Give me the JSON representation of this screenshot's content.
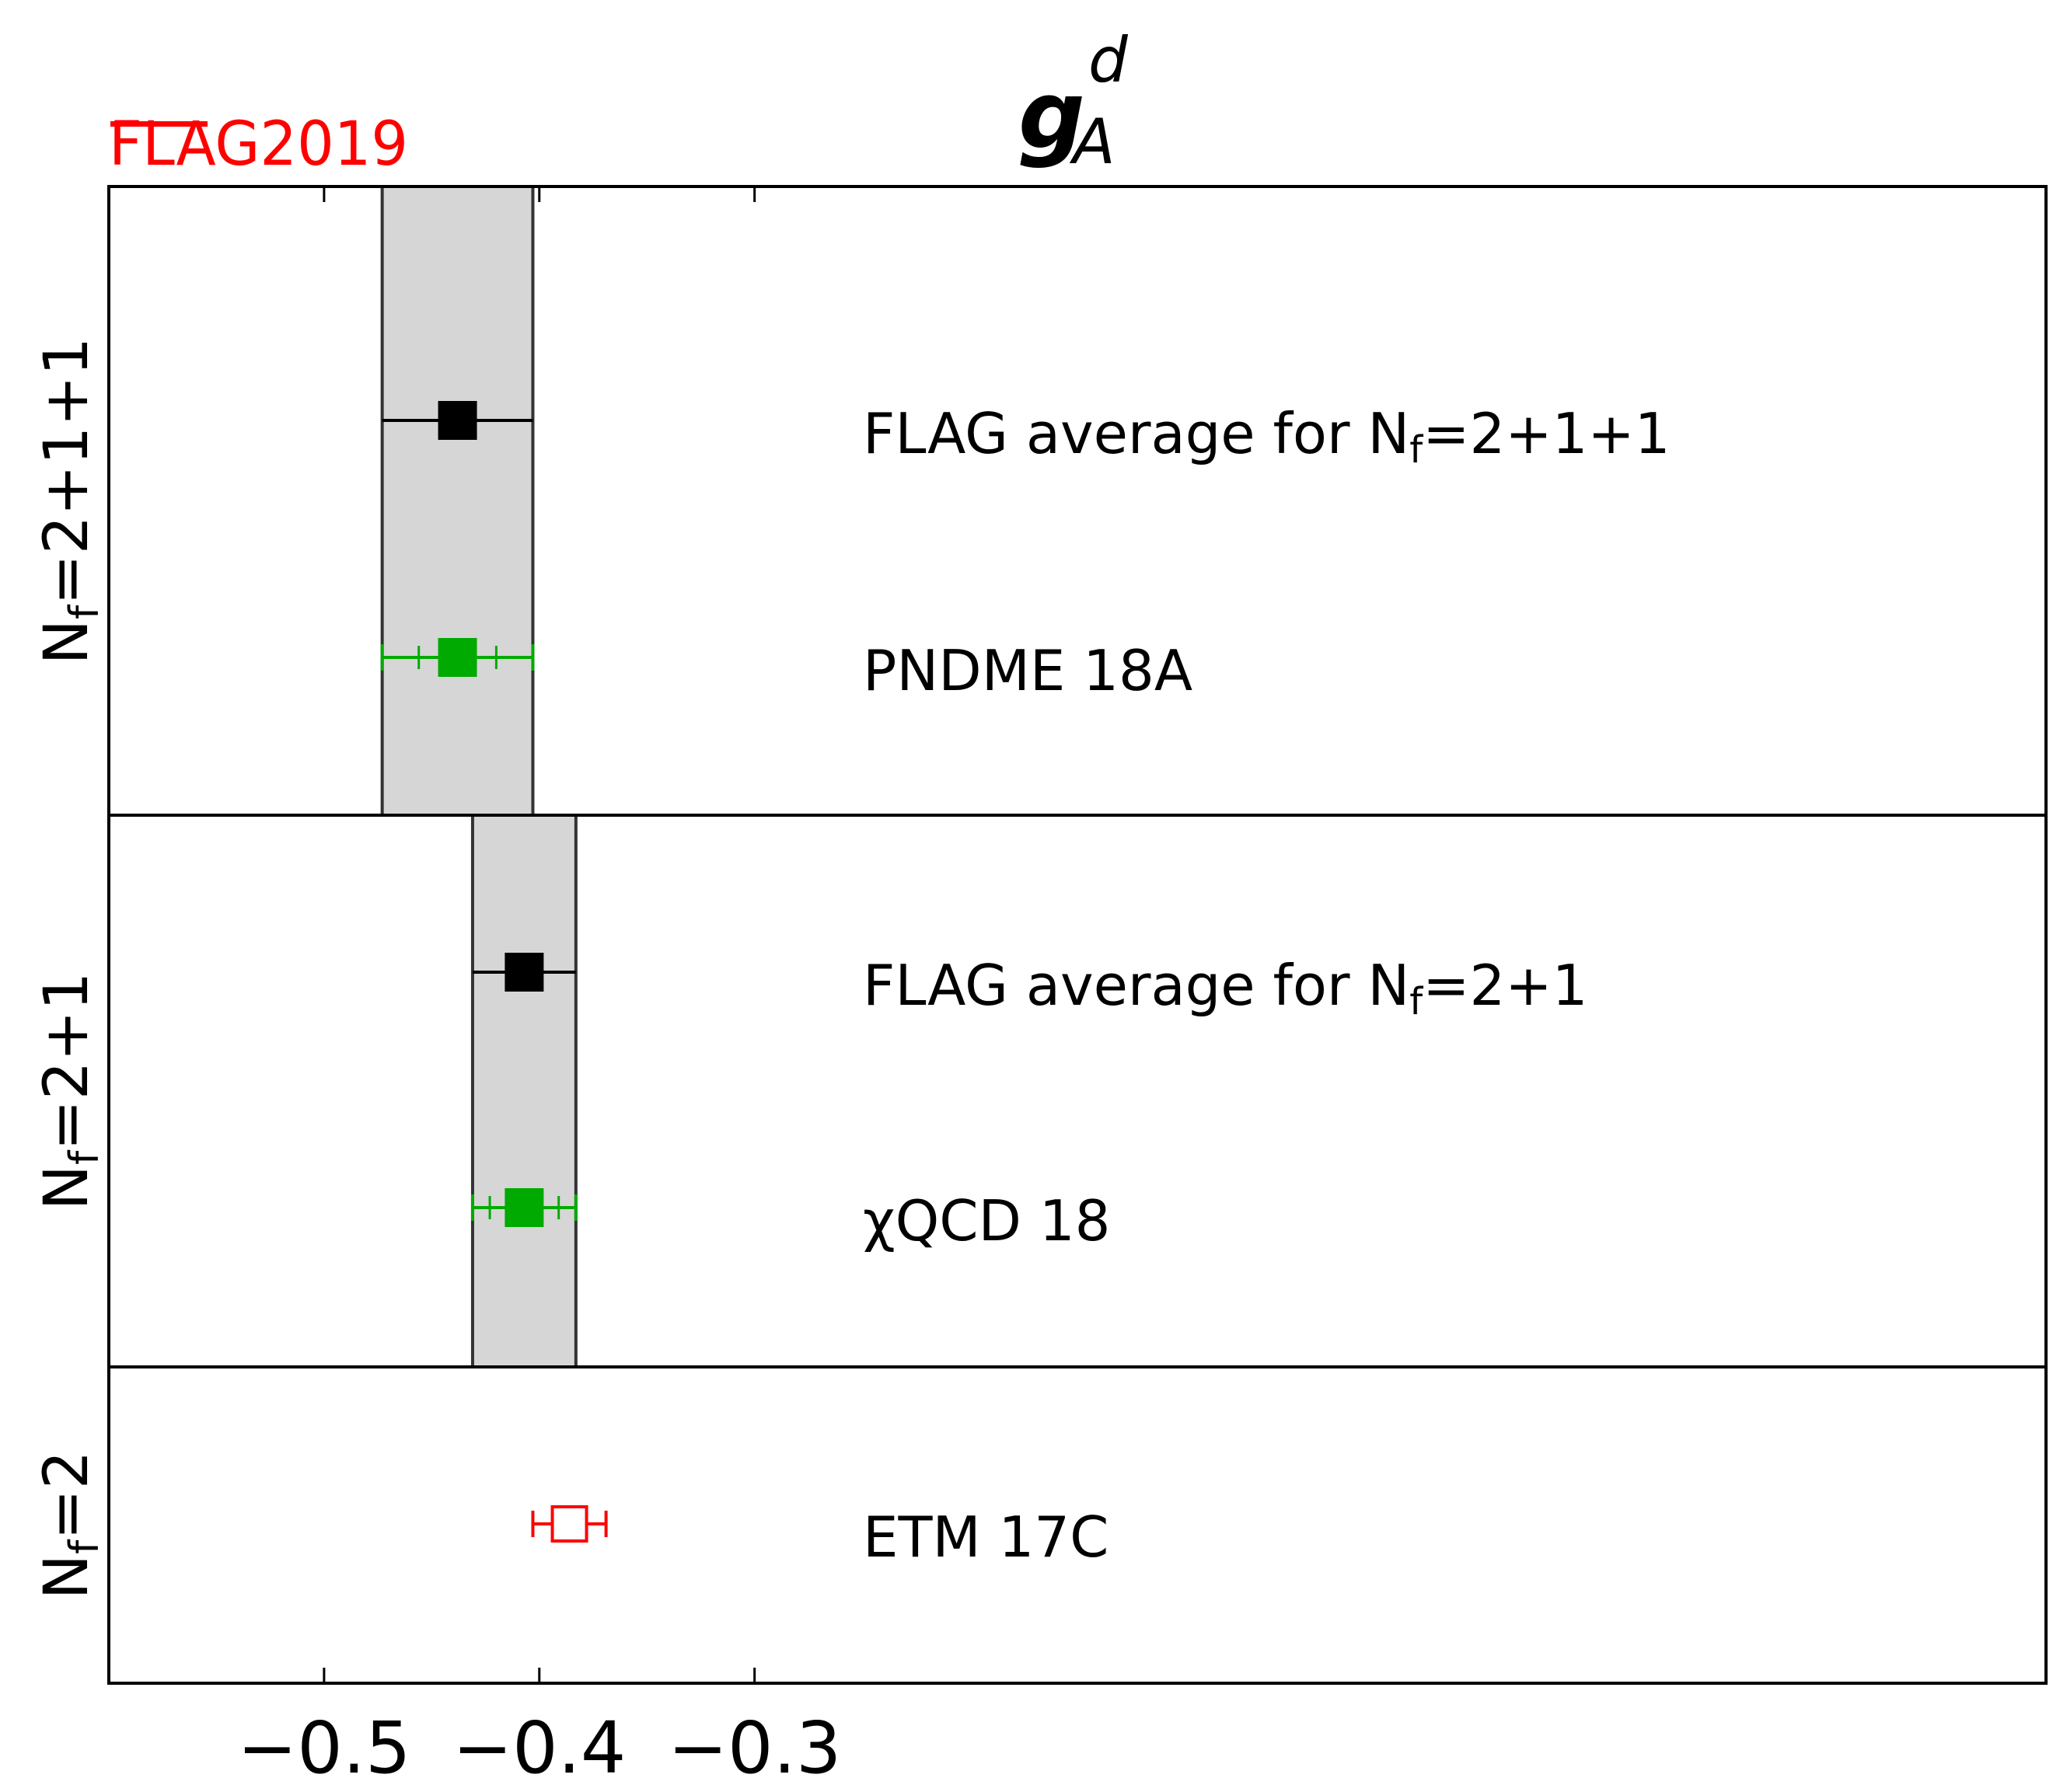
{
  "chart_data": {
    "type": "scatter",
    "title_main": "g",
    "title_sub": "A",
    "title_sup": "d",
    "watermark": "FLAG2019",
    "xlim": [
      -0.6,
      0.3
    ],
    "xticks": [
      -0.5,
      -0.4,
      -0.3
    ],
    "xtick_labels": [
      "−0.5",
      "−0.4",
      "−0.3"
    ],
    "grid": false,
    "colors": {
      "average": "#000000",
      "green": "#00aa00",
      "red": "#ff0000",
      "band": "#d6d6d6"
    },
    "panels": [
      {
        "label": "N",
        "label_sub": "f",
        "label_rest": "=2+1+1",
        "band": [
          -0.473,
          -0.403
        ],
        "points": [
          {
            "name": "FLAG average for N",
            "name_sub": "f",
            "name_rest": "=2+1+1",
            "value": -0.438,
            "err": 0.035,
            "stat_err": null,
            "color": "#000000",
            "filled": true
          },
          {
            "name": "PNDME 18A",
            "value": -0.438,
            "err": 0.035,
            "stat_err": 0.018,
            "color": "#00aa00",
            "filled": true
          }
        ]
      },
      {
        "label": "N",
        "label_sub": "f",
        "label_rest": "=2+1",
        "band": [
          -0.431,
          -0.383
        ],
        "points": [
          {
            "name": "FLAG average for N",
            "name_sub": "f",
            "name_rest": "=2+1",
            "value": -0.407,
            "err": 0.024,
            "stat_err": null,
            "color": "#000000",
            "filled": true
          },
          {
            "name": "χQCD 18",
            "value": -0.407,
            "err": 0.024,
            "stat_err": 0.016,
            "color": "#00aa00",
            "filled": true
          }
        ]
      },
      {
        "label": "N",
        "label_sub": "f",
        "label_rest": "=2",
        "band": null,
        "points": [
          {
            "name": "ETM 17C",
            "value": -0.386,
            "err": 0.017,
            "stat_err": null,
            "color": "#ff0000",
            "filled": false
          }
        ]
      }
    ]
  }
}
